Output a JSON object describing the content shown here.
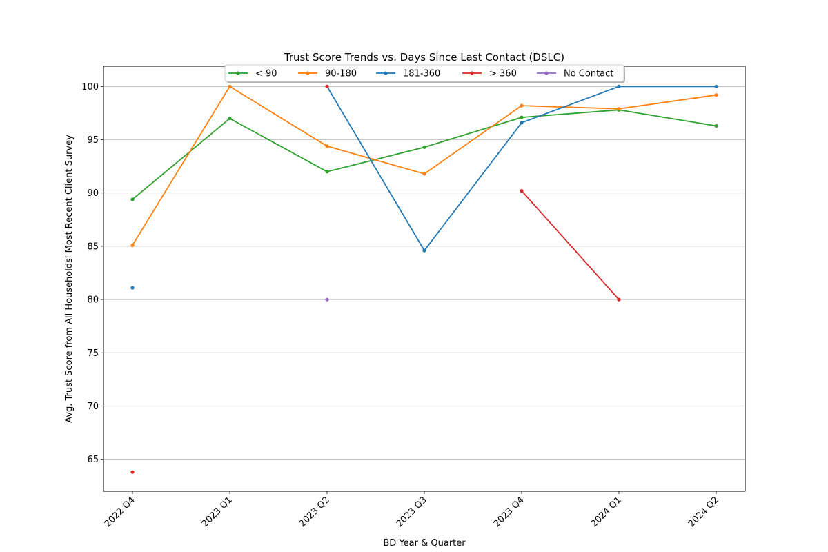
{
  "chart_data": {
    "type": "line",
    "title": "Trust Score Trends vs. Days Since Last Contact (DSLC)",
    "xlabel": "BD Year & Quarter",
    "ylabel": "Avg. Trust Score from All Households' Most Recent Client Survey",
    "categories": [
      "2022 Q4",
      "2023 Q1",
      "2023 Q2",
      "2023 Q3",
      "2023 Q4",
      "2024 Q1",
      "2024 Q2"
    ],
    "ylim": [
      62,
      101.9
    ],
    "yticks": [
      65,
      70,
      75,
      80,
      85,
      90,
      95,
      100
    ],
    "grid": "horizontal",
    "legend_placement": "top-center",
    "series": [
      {
        "name": "< 90",
        "color": "#2ca02c",
        "values": [
          89.4,
          97.0,
          92.0,
          94.3,
          97.1,
          97.8,
          96.3
        ]
      },
      {
        "name": "90-180",
        "color": "#ff7f0e",
        "values": [
          85.1,
          100.0,
          94.4,
          91.8,
          98.2,
          97.9,
          99.2
        ]
      },
      {
        "name": "181-360",
        "color": "#1f77b4",
        "values": [
          81.1,
          null,
          100.0,
          84.6,
          96.6,
          100.0,
          100.0
        ]
      },
      {
        "name": "> 360",
        "color": "#d62728",
        "values": [
          63.8,
          null,
          100.0,
          null,
          90.2,
          80.0,
          null
        ]
      },
      {
        "name": "No Contact",
        "color": "#9467bd",
        "values": [
          null,
          null,
          80.0,
          null,
          null,
          null,
          null
        ]
      }
    ]
  }
}
